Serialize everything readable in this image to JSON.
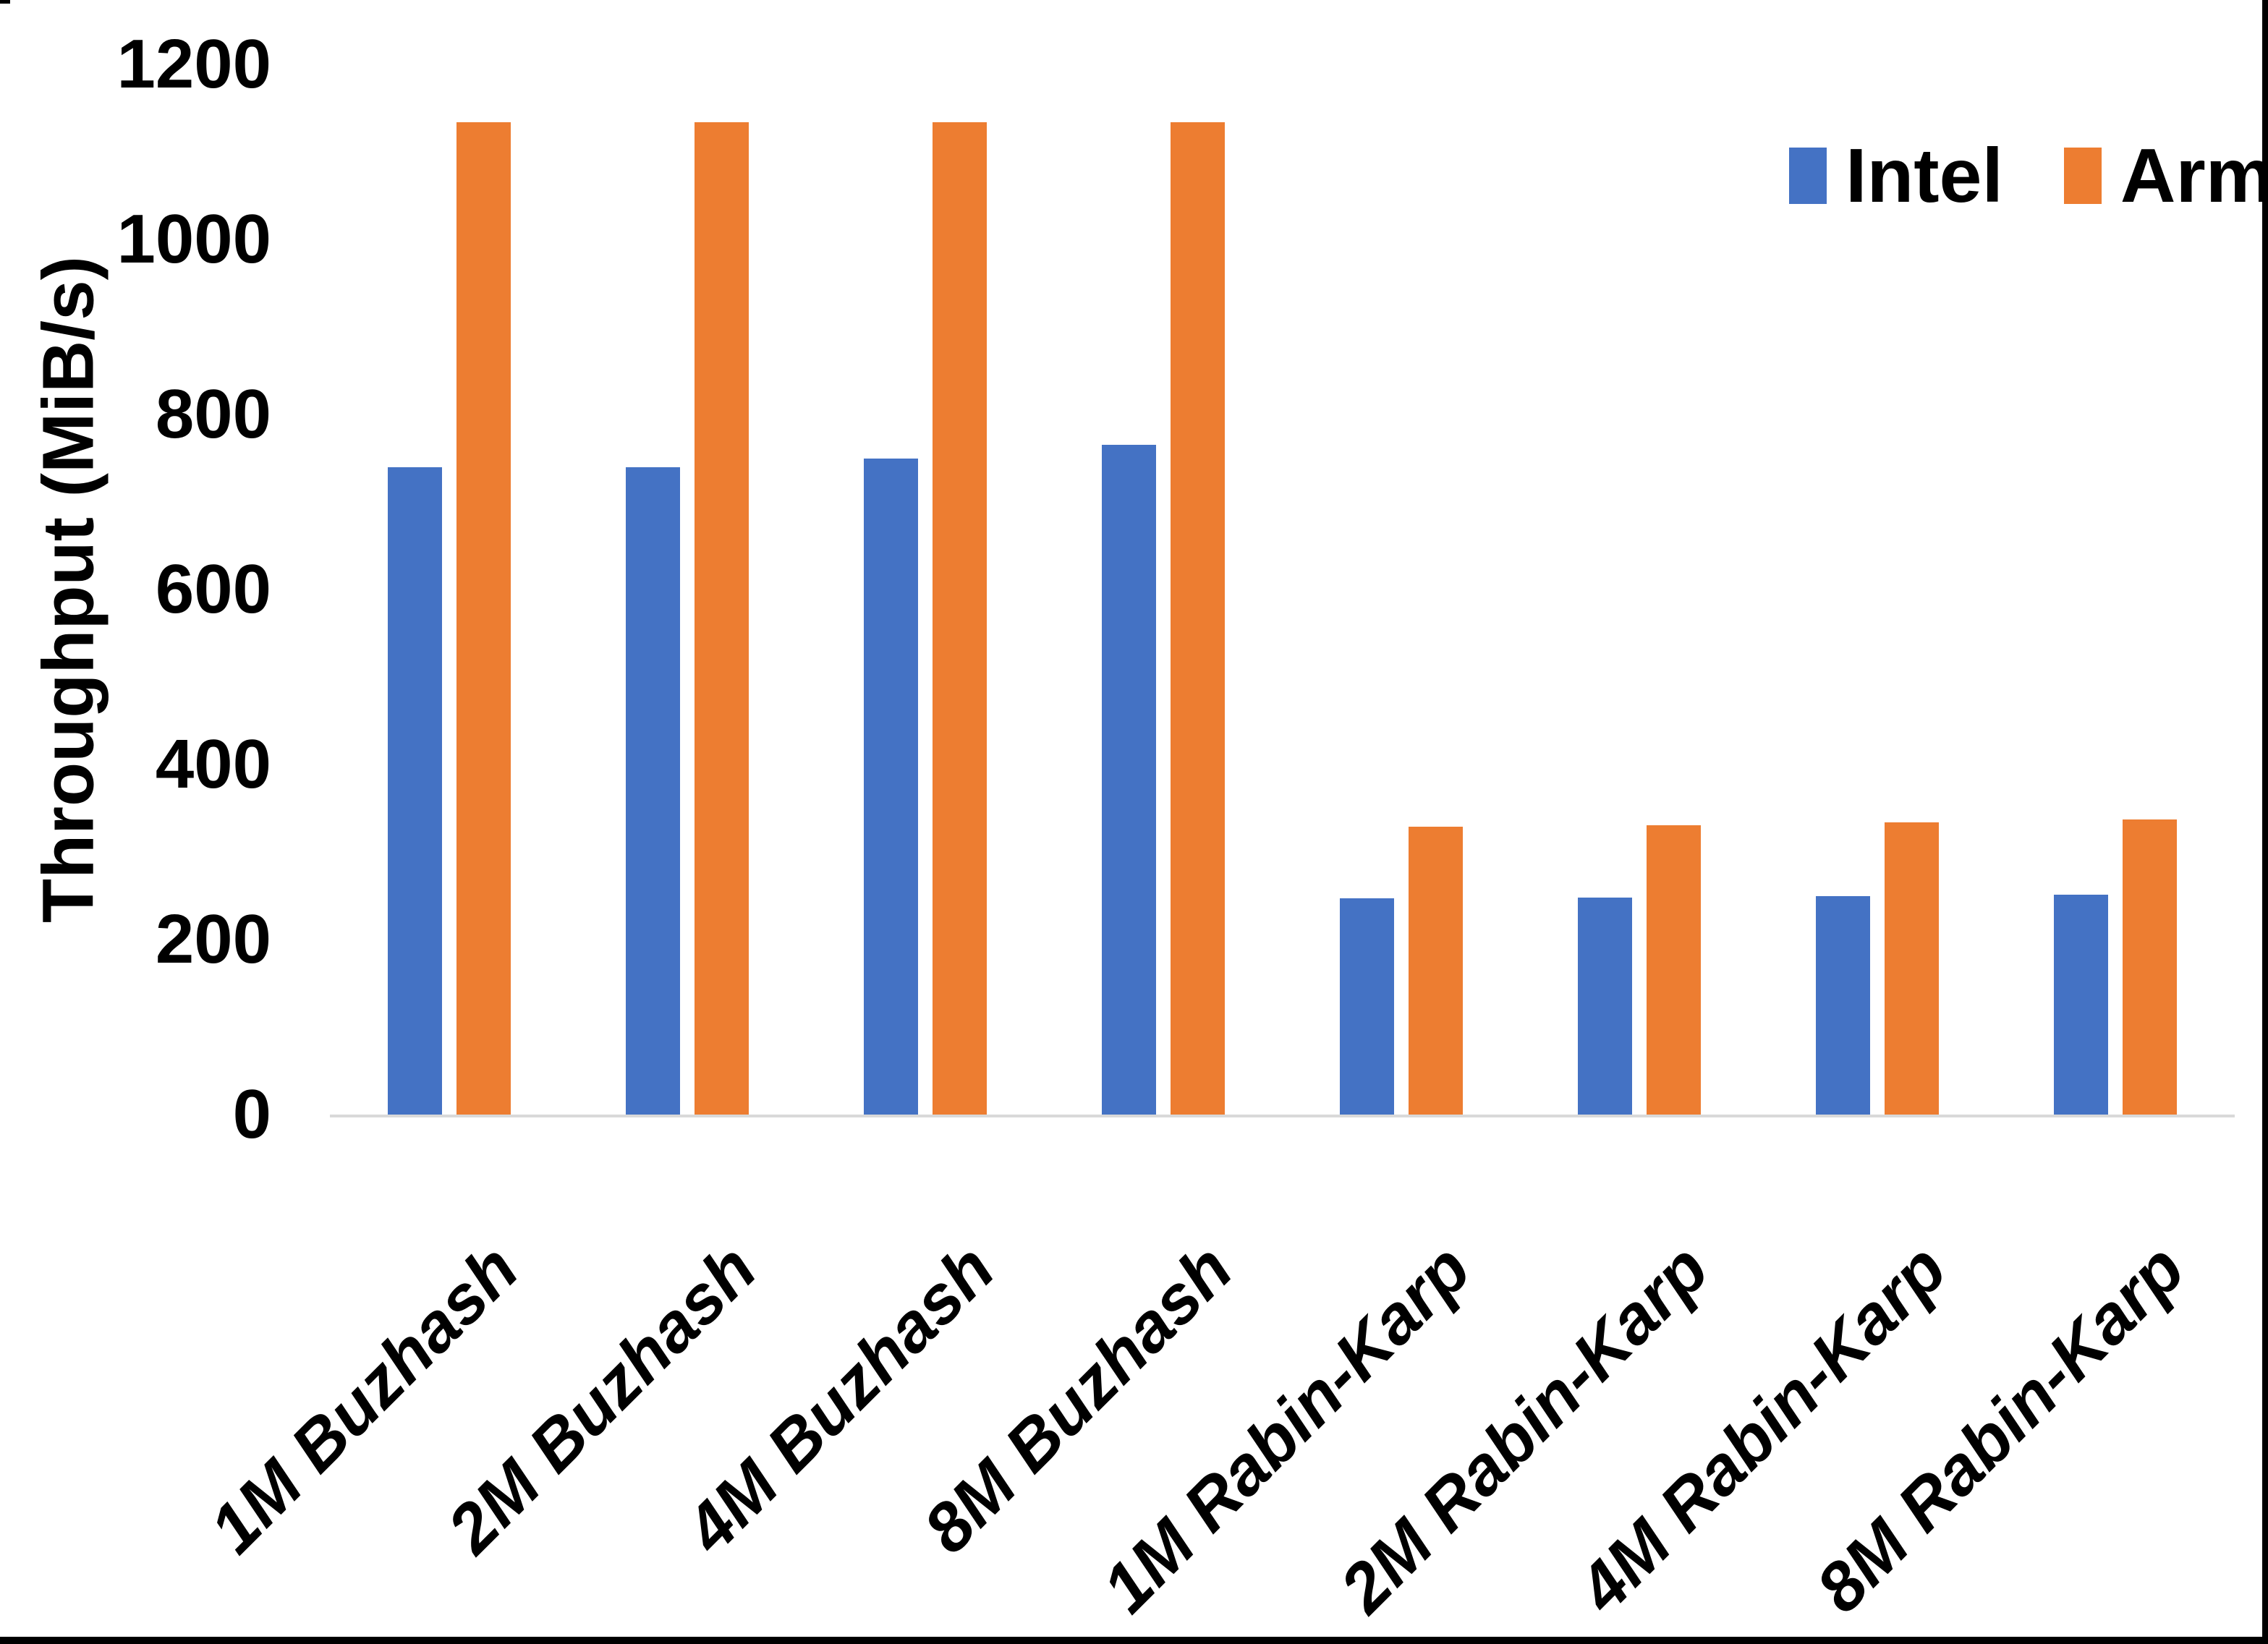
{
  "chart_data": {
    "type": "bar",
    "title": "",
    "xlabel": "",
    "ylabel": "Throughput (MiB/s)",
    "ylim": [
      0,
      1200
    ],
    "yticks": [
      0,
      200,
      400,
      600,
      800,
      1000,
      1200
    ],
    "grid": false,
    "legend_position": "top-right",
    "categories": [
      "1M Buzhash",
      "2M Buzhash",
      "4M Buzhash",
      "8M Buzhash",
      "1M Rabin-Karp",
      "2M Rabin-Karp",
      "4M Rabin-Karp",
      "8M Rabin-Karp"
    ],
    "series": [
      {
        "name": "Intel",
        "color": "#4472C4",
        "values": [
          740,
          740,
          750,
          765,
          247,
          248,
          250,
          251
        ]
      },
      {
        "name": "Arm",
        "color": "#ED7D31",
        "values": [
          1134,
          1134,
          1134,
          1134,
          329,
          331,
          334,
          337
        ]
      }
    ]
  },
  "colors": {
    "background": "#FFFFFF",
    "text": "#000000",
    "axis_line": "#D9D9D9",
    "frame": "#000000"
  }
}
